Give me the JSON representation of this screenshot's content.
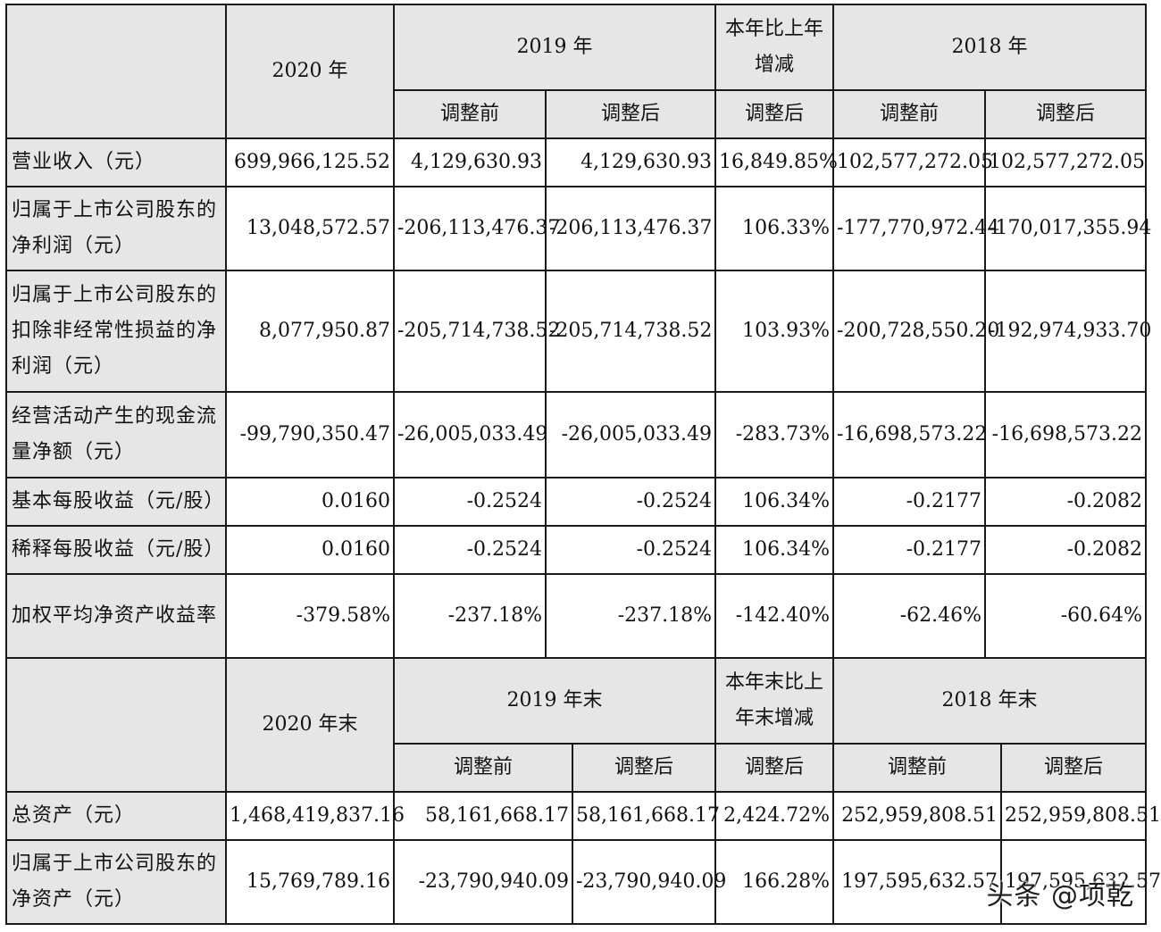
{
  "table1": {
    "header": {
      "col_2020": "2020 年",
      "col_2019": "2019 年",
      "col_change": "本年比上年增减",
      "col_2018": "2018 年",
      "before": "调整前",
      "after": "调整后",
      "after_change": "调整后"
    },
    "rows": [
      {
        "label": "营业收入（元）",
        "v2020": "699,966,125.52",
        "v2019_before": "4,129,630.93",
        "v2019_after": "4,129,630.93",
        "change": "16,849.85%",
        "v2018_before": "102,577,272.05",
        "v2018_after": "102,577,272.05"
      },
      {
        "label": "归属于上市公司股东的净利润（元）",
        "v2020": "13,048,572.57",
        "v2019_before": "-206,113,476.37",
        "v2019_after": "-206,113,476.37",
        "change": "106.33%",
        "v2018_before": "-177,770,972.44",
        "v2018_after": "-170,017,355.94"
      },
      {
        "label": "归属于上市公司股东的扣除非经常性损益的净利润（元）",
        "v2020": "8,077,950.87",
        "v2019_before": "-205,714,738.52",
        "v2019_after": "-205,714,738.52",
        "change": "103.93%",
        "v2018_before": "-200,728,550.20",
        "v2018_after": "-192,974,933.70"
      },
      {
        "label": "经营活动产生的现金流量净额（元）",
        "v2020": "-99,790,350.47",
        "v2019_before": "-26,005,033.49",
        "v2019_after": "-26,005,033.49",
        "change": "-283.73%",
        "v2018_before": "-16,698,573.22",
        "v2018_after": "-16,698,573.22"
      },
      {
        "label": "基本每股收益（元/股）",
        "v2020": "0.0160",
        "v2019_before": "-0.2524",
        "v2019_after": "-0.2524",
        "change": "106.34%",
        "v2018_before": "-0.2177",
        "v2018_after": "-0.2082"
      },
      {
        "label": "稀释每股收益（元/股）",
        "v2020": "0.0160",
        "v2019_before": "-0.2524",
        "v2019_after": "-0.2524",
        "change": "106.34%",
        "v2018_before": "-0.2177",
        "v2018_after": "-0.2082"
      },
      {
        "label": "加权平均净资产收益率",
        "v2020": "-379.58%",
        "v2019_before": "-237.18%",
        "v2019_after": "-237.18%",
        "change": "-142.40%",
        "v2018_before": "-62.46%",
        "v2018_after": "-60.64%"
      }
    ]
  },
  "table2": {
    "header": {
      "col_2020": "2020 年末",
      "col_2019": "2019 年末",
      "col_change": "本年末比上年末增减",
      "col_2018": "2018 年末",
      "before": "调整前",
      "after": "调整后",
      "after_change": "调整后"
    },
    "rows": [
      {
        "label": "总资产（元）",
        "v2020": "1,468,419,837.16",
        "v2019_before": "58,161,668.17",
        "v2019_after": "58,161,668.17",
        "change": "2,424.72%",
        "v2018_before": "252,959,808.51",
        "v2018_after": "252,959,808.51"
      },
      {
        "label": "归属于上市公司股东的净资产（元）",
        "v2020": "15,769,789.16",
        "v2019_before": "-23,790,940.09",
        "v2019_after": "-23,790,940.09",
        "change": "166.28%",
        "v2018_before": "197,595,632.57",
        "v2018_after": "197,595,632.57"
      }
    ]
  },
  "watermark": "头条 @项乾"
}
